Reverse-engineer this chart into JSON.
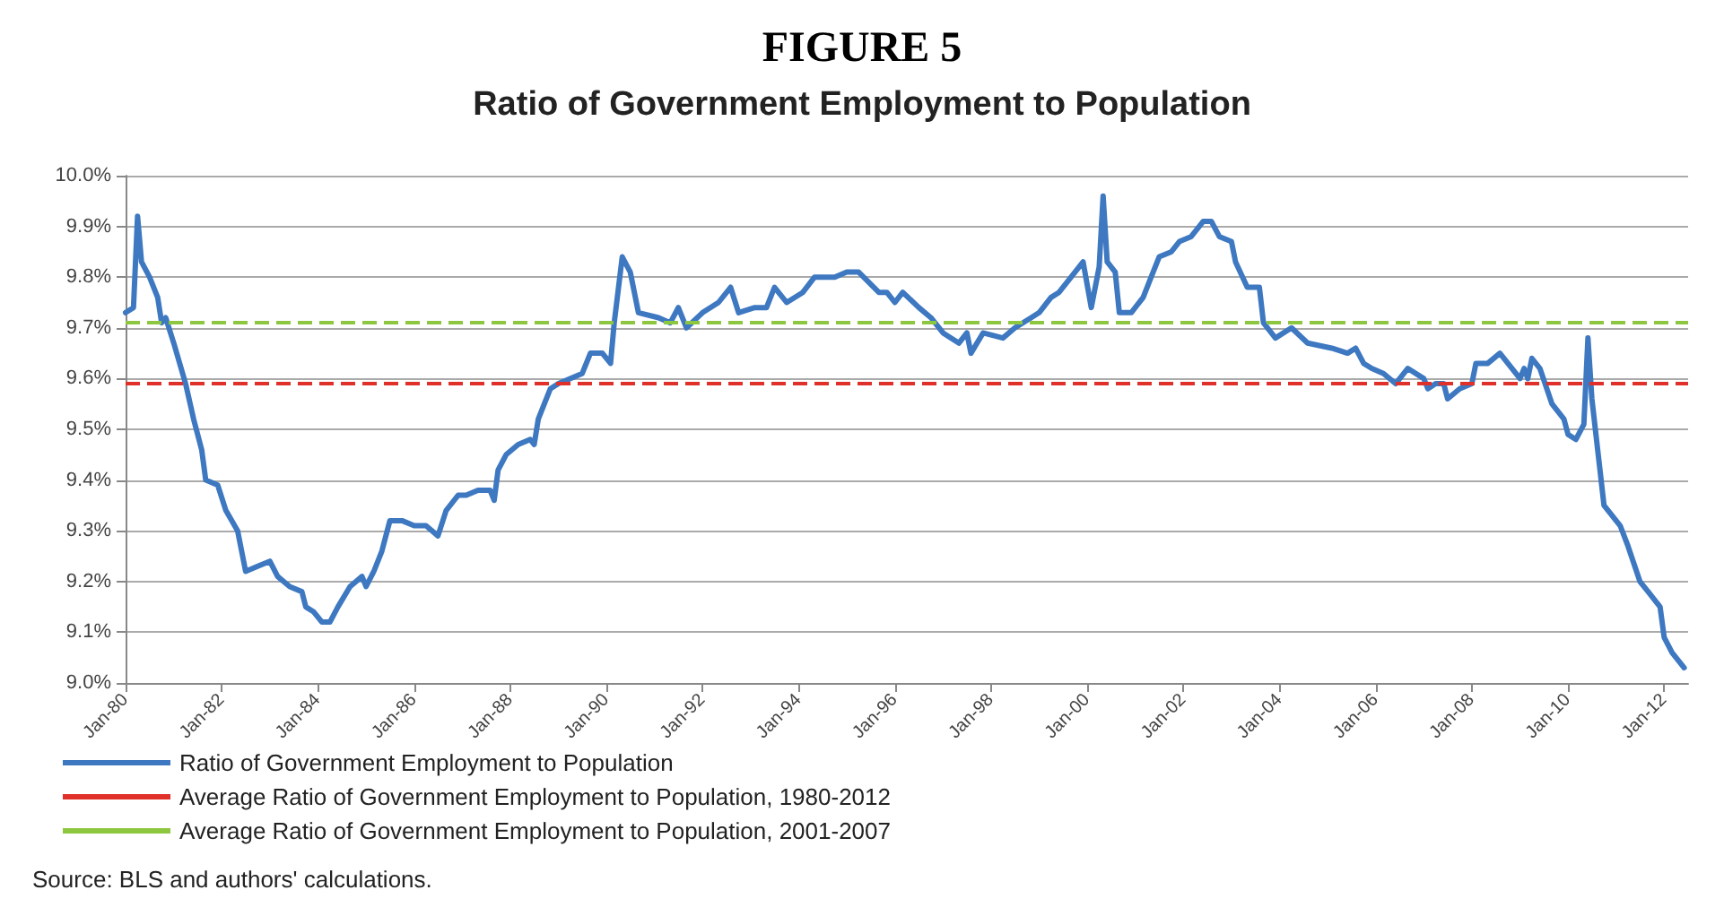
{
  "chart_data": {
    "type": "line",
    "title": "FIGURE 5",
    "subtitle": "Ratio of Government Employment to Population",
    "x": [
      "1980-01",
      "1980-03",
      "1980-04",
      "1980-05",
      "1980-07",
      "1980-09",
      "1980-10",
      "1980-11",
      "1981-01",
      "1981-04",
      "1981-06",
      "1981-08",
      "1981-09",
      "1981-12",
      "1982-02",
      "1982-05",
      "1982-07",
      "1982-10",
      "1983-01",
      "1983-03",
      "1983-06",
      "1983-09",
      "1983-10",
      "1983-12",
      "1984-02",
      "1984-04",
      "1984-06",
      "1984-09",
      "1984-12",
      "1985-01",
      "1985-03",
      "1985-05",
      "1985-07",
      "1985-10",
      "1986-01",
      "1986-04",
      "1986-07",
      "1986-09",
      "1986-12",
      "1987-02",
      "1987-05",
      "1987-08",
      "1987-09",
      "1987-10",
      "1987-12",
      "1988-03",
      "1988-06",
      "1988-07",
      "1988-08",
      "1988-11",
      "1989-01",
      "1989-07",
      "1989-09",
      "1989-12",
      "1990-02",
      "1990-03",
      "1990-05",
      "1990-07",
      "1990-09",
      "1991-02",
      "1991-05",
      "1991-07",
      "1991-09",
      "1992-01",
      "1992-05",
      "1992-08",
      "1992-10",
      "1993-02",
      "1993-05",
      "1993-07",
      "1993-10",
      "1994-02",
      "1994-05",
      "1994-10",
      "1995-01",
      "1995-04",
      "1995-09",
      "1995-11",
      "1996-01",
      "1996-03",
      "1996-07",
      "1996-10",
      "1997-01",
      "1997-05",
      "1997-07",
      "1997-08",
      "1997-11",
      "1998-04",
      "1998-07",
      "1998-11",
      "1999-01",
      "1999-04",
      "1999-06",
      "1999-09",
      "1999-12",
      "2000-02",
      "2000-04",
      "2000-05",
      "2000-06",
      "2000-08",
      "2000-09",
      "2000-12",
      "2001-03",
      "2001-05",
      "2001-07",
      "2001-10",
      "2001-12",
      "2002-03",
      "2002-06",
      "2002-08",
      "2002-10",
      "2003-01",
      "2003-02",
      "2003-05",
      "2003-08",
      "2003-09",
      "2003-12",
      "2004-04",
      "2004-08",
      "2005-02",
      "2005-06",
      "2005-08",
      "2005-10",
      "2005-12",
      "2006-03",
      "2006-06",
      "2006-09",
      "2007-01",
      "2007-02",
      "2007-04",
      "2007-06",
      "2007-07",
      "2007-10",
      "2008-01",
      "2008-02",
      "2008-05",
      "2008-08",
      "2009-01",
      "2009-02",
      "2009-03",
      "2009-04",
      "2009-06",
      "2009-09",
      "2009-12",
      "2010-01",
      "2010-03",
      "2010-05",
      "2010-06",
      "2010-07",
      "2010-10",
      "2010-12",
      "2011-02",
      "2011-04",
      "2011-07",
      "2011-09",
      "2011-12",
      "2012-01",
      "2012-03",
      "2012-06"
    ],
    "series": [
      {
        "name": "Ratio of Government Employment to Population",
        "color": "#3d78c1",
        "values": [
          9.73,
          9.74,
          9.92,
          9.83,
          9.8,
          9.76,
          9.71,
          9.72,
          9.67,
          9.59,
          9.52,
          9.46,
          9.4,
          9.39,
          9.34,
          9.3,
          9.22,
          9.23,
          9.24,
          9.21,
          9.19,
          9.18,
          9.15,
          9.14,
          9.12,
          9.12,
          9.15,
          9.19,
          9.21,
          9.19,
          9.22,
          9.26,
          9.32,
          9.32,
          9.31,
          9.31,
          9.29,
          9.34,
          9.37,
          9.37,
          9.38,
          9.38,
          9.36,
          9.42,
          9.45,
          9.47,
          9.48,
          9.47,
          9.52,
          9.58,
          9.59,
          9.61,
          9.65,
          9.65,
          9.63,
          9.71,
          9.84,
          9.81,
          9.73,
          9.72,
          9.71,
          9.74,
          9.7,
          9.73,
          9.75,
          9.78,
          9.73,
          9.74,
          9.74,
          9.78,
          9.75,
          9.77,
          9.8,
          9.8,
          9.81,
          9.81,
          9.77,
          9.77,
          9.75,
          9.77,
          9.74,
          9.72,
          9.69,
          9.67,
          9.69,
          9.65,
          9.69,
          9.68,
          9.7,
          9.72,
          9.73,
          9.76,
          9.77,
          9.8,
          9.83,
          9.74,
          9.82,
          9.96,
          9.83,
          9.81,
          9.73,
          9.73,
          9.76,
          9.8,
          9.84,
          9.85,
          9.87,
          9.88,
          9.91,
          9.91,
          9.88,
          9.87,
          9.83,
          9.78,
          9.78,
          9.71,
          9.68,
          9.7,
          9.67,
          9.66,
          9.65,
          9.66,
          9.63,
          9.62,
          9.61,
          9.59,
          9.62,
          9.6,
          9.58,
          9.59,
          9.59,
          9.56,
          9.58,
          9.59,
          9.63,
          9.63,
          9.65,
          9.6,
          9.62,
          9.6,
          9.64,
          9.62,
          9.55,
          9.52,
          9.49,
          9.48,
          9.51,
          9.68,
          9.56,
          9.35,
          9.33,
          9.31,
          9.27,
          9.2,
          9.18,
          9.15,
          9.09,
          9.06,
          9.03
        ]
      }
    ],
    "xlim": [
      "1980-01",
      "2012-07"
    ],
    "xticks": [
      {
        "value": "1980-01",
        "label": "Jan-80"
      },
      {
        "value": "1982-01",
        "label": "Jan-82"
      },
      {
        "value": "1984-01",
        "label": "Jan-84"
      },
      {
        "value": "1986-01",
        "label": "Jan-86"
      },
      {
        "value": "1988-01",
        "label": "Jan-88"
      },
      {
        "value": "1990-01",
        "label": "Jan-90"
      },
      {
        "value": "1992-01",
        "label": "Jan-92"
      },
      {
        "value": "1994-01",
        "label": "Jan-94"
      },
      {
        "value": "1996-01",
        "label": "Jan-96"
      },
      {
        "value": "1998-01",
        "label": "Jan-98"
      },
      {
        "value": "2000-01",
        "label": "Jan-00"
      },
      {
        "value": "2002-01",
        "label": "Jan-02"
      },
      {
        "value": "2004-01",
        "label": "Jan-04"
      },
      {
        "value": "2006-01",
        "label": "Jan-06"
      },
      {
        "value": "2008-01",
        "label": "Jan-08"
      },
      {
        "value": "2010-01",
        "label": "Jan-10"
      },
      {
        "value": "2012-01",
        "label": "Jan-12"
      }
    ],
    "ylim": [
      9.0,
      10.0
    ],
    "yticks": [
      {
        "value": 9.0,
        "label": "9.0%"
      },
      {
        "value": 9.1,
        "label": "9.1%"
      },
      {
        "value": 9.2,
        "label": "9.2%"
      },
      {
        "value": 9.3,
        "label": "9.3%"
      },
      {
        "value": 9.4,
        "label": "9.4%"
      },
      {
        "value": 9.5,
        "label": "9.5%"
      },
      {
        "value": 9.6,
        "label": "9.6%"
      },
      {
        "value": 9.7,
        "label": "9.7%"
      },
      {
        "value": 9.8,
        "label": "9.8%"
      },
      {
        "value": 9.9,
        "label": "9.9%"
      },
      {
        "value": 10.0,
        "label": "10.0%"
      }
    ],
    "ref_lines": [
      {
        "axis": "y",
        "value": 9.59,
        "label": "Average Ratio of Government Employment to Population, 1980-2012",
        "color": "#e0302a",
        "line_style": "dashed"
      },
      {
        "axis": "y",
        "value": 9.71,
        "label": "Average Ratio of Government Employment to Population, 2001-2007",
        "color": "#8dc63f",
        "line_style": "dashed"
      }
    ],
    "annotations": [
      "Source: BLS and authors' calculations."
    ],
    "grid": "y",
    "legend": "bottom left",
    "marker": "none",
    "line_style": "solid"
  }
}
